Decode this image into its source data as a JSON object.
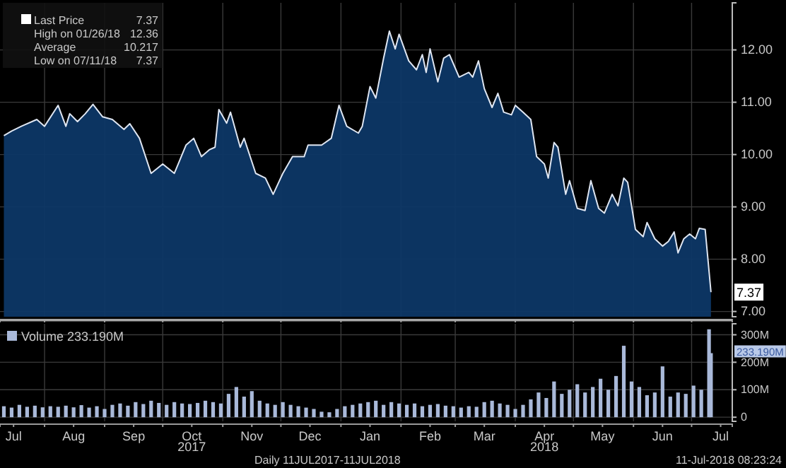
{
  "chart_data": [
    {
      "type": "area",
      "color": "#0d3766",
      "grid": true,
      "tick_labels": "y",
      "xlim": [
        "2017-07-09",
        "2018-07-22"
      ],
      "xticks": [
        {
          "value": "2017-08-01",
          "label": null
        },
        {
          "value": "2017-09-01",
          "label": null
        },
        {
          "value": "2017-10-01",
          "label": null
        },
        {
          "value": "2017-11-01",
          "label": null
        },
        {
          "value": "2017-12-01",
          "label": null
        },
        {
          "value": "2018-01-01",
          "label": null
        },
        {
          "value": "2018-02-01",
          "label": null
        },
        {
          "value": "2018-03-01",
          "label": null
        },
        {
          "value": "2018-04-01",
          "label": null
        },
        {
          "value": "2018-05-01",
          "label": null
        },
        {
          "value": "2018-06-01",
          "label": null
        },
        {
          "value": "2018-07-01",
          "label": null
        }
      ],
      "ylim": [
        6.9,
        12.9
      ],
      "yticks": [
        {
          "value": 7,
          "label": "7.00"
        },
        {
          "value": 8,
          "label": "8.00"
        },
        {
          "value": 9,
          "label": "9.00"
        },
        {
          "value": 10,
          "label": "10.00"
        },
        {
          "value": 11,
          "label": "11.00"
        },
        {
          "value": 12,
          "label": "12.00"
        }
      ],
      "x": [
        "2017-07-11",
        "2017-07-15",
        "2017-07-20",
        "2017-07-28",
        "2017-08-01",
        "2017-08-08",
        "2017-08-12",
        "2017-08-14",
        "2017-08-18",
        "2017-08-22",
        "2017-08-26",
        "2017-08-31",
        "2017-09-05",
        "2017-09-11",
        "2017-09-14",
        "2017-09-19",
        "2017-09-25",
        "2017-10-01",
        "2017-10-07",
        "2017-10-13",
        "2017-10-17",
        "2017-10-21",
        "2017-10-25",
        "2017-10-28",
        "2017-10-30",
        "2017-11-03",
        "2017-11-05",
        "2017-11-10",
        "2017-11-12",
        "2017-11-18",
        "2017-11-23",
        "2017-11-27",
        "2017-12-02",
        "2017-12-07",
        "2017-12-13",
        "2017-12-15",
        "2017-12-22",
        "2017-12-27",
        "2017-12-31",
        "2018-01-04",
        "2018-01-10",
        "2018-01-12",
        "2018-01-16",
        "2018-01-19",
        "2018-01-23",
        "2018-01-26",
        "2018-01-29",
        "2018-01-31",
        "2018-02-05",
        "2018-02-09",
        "2018-02-12",
        "2018-02-14",
        "2018-02-16",
        "2018-02-20",
        "2018-02-23",
        "2018-02-26",
        "2018-03-03",
        "2018-03-08",
        "2018-03-10",
        "2018-03-13",
        "2018-03-16",
        "2018-03-20",
        "2018-03-23",
        "2018-03-26",
        "2018-03-30",
        "2018-04-01",
        "2018-04-05",
        "2018-04-09",
        "2018-04-12",
        "2018-04-16",
        "2018-04-18",
        "2018-04-21",
        "2018-04-23",
        "2018-04-27",
        "2018-04-29",
        "2018-05-03",
        "2018-05-07",
        "2018-05-10",
        "2018-05-14",
        "2018-05-17",
        "2018-05-21",
        "2018-05-24",
        "2018-05-27",
        "2018-05-29",
        "2018-06-02",
        "2018-06-06",
        "2018-06-08",
        "2018-06-12",
        "2018-06-16",
        "2018-06-19",
        "2018-06-22",
        "2018-06-24",
        "2018-06-27",
        "2018-06-30",
        "2018-07-03",
        "2018-07-05",
        "2018-07-08",
        "2018-07-11"
      ],
      "values": [
        10.36,
        10.45,
        10.54,
        10.67,
        10.54,
        10.94,
        10.54,
        10.78,
        10.63,
        10.78,
        10.96,
        10.72,
        10.67,
        10.48,
        10.59,
        10.31,
        9.64,
        9.82,
        9.64,
        10.18,
        10.31,
        9.96,
        10.09,
        10.14,
        10.86,
        10.6,
        10.81,
        10.14,
        10.31,
        9.64,
        9.55,
        9.24,
        9.64,
        9.96,
        9.96,
        10.18,
        10.18,
        10.31,
        10.94,
        10.54,
        10.41,
        10.54,
        11.3,
        11.08,
        11.84,
        12.36,
        12.02,
        12.3,
        11.79,
        11.62,
        11.91,
        11.57,
        12.02,
        11.39,
        11.84,
        11.91,
        11.48,
        11.57,
        11.48,
        11.79,
        11.26,
        10.9,
        11.17,
        10.81,
        10.76,
        10.94,
        10.81,
        10.67,
        9.96,
        9.82,
        9.55,
        10.23,
        10.14,
        9.24,
        9.5,
        8.97,
        8.93,
        9.5,
        8.97,
        8.88,
        9.24,
        9.02,
        9.55,
        9.47,
        8.57,
        8.43,
        8.7,
        8.39,
        8.25,
        8.34,
        8.52,
        8.12,
        8.39,
        8.48,
        8.39,
        8.59,
        8.57,
        7.37
      ],
      "annotations": [
        "Last Price",
        "7.37",
        "High on 01/26/18",
        "12.36",
        "Average",
        "10.217",
        "Low on 07/11/18",
        "7.37",
        {
          "text": "7.37",
          "x": "2018-07-11",
          "y": 7.37
        }
      ]
    },
    {
      "type": "bar",
      "grid": true,
      "legend": "top left",
      "xlim": [
        "2017-07-09",
        "2018-07-22"
      ],
      "xticks": [
        {
          "value": "2017-07-16",
          "label": "Jul"
        },
        {
          "value": "2017-08-01",
          "label": null
        },
        {
          "value": "2017-08-16",
          "label": "Aug"
        },
        {
          "value": "2017-09-01",
          "label": null
        },
        {
          "value": "2017-09-16",
          "label": "Sep"
        },
        {
          "value": "2017-10-01",
          "label": null
        },
        {
          "value": "2017-10-16",
          "label": "Oct"
        },
        {
          "value": "2017-11-01",
          "label": null
        },
        {
          "value": "2017-11-16",
          "label": "Nov"
        },
        {
          "value": "2017-12-01",
          "label": null
        },
        {
          "value": "2017-12-16",
          "label": "Dec"
        },
        {
          "value": "2018-01-01",
          "label": null
        },
        {
          "value": "2018-01-16",
          "label": "Jan"
        },
        {
          "value": "2018-02-01",
          "label": null
        },
        {
          "value": "2018-02-16",
          "label": "Feb"
        },
        {
          "value": "2018-03-01",
          "label": null
        },
        {
          "value": "2018-03-16",
          "label": "Mar"
        },
        {
          "value": "2018-04-01",
          "label": null
        },
        {
          "value": "2018-04-16",
          "label": "Apr"
        },
        {
          "value": "2018-05-01",
          "label": null
        },
        {
          "value": "2018-05-16",
          "label": "May"
        },
        {
          "value": "2018-06-01",
          "label": null
        },
        {
          "value": "2018-06-16",
          "label": "Jun"
        },
        {
          "value": "2018-07-01",
          "label": null
        },
        {
          "value": "2018-07-16",
          "label": "Jul"
        }
      ],
      "ylim": [
        -15,
        340
      ],
      "yticks": [
        0,
        {
          "value": 100,
          "label": "100M"
        },
        {
          "value": 200,
          "label": "200M"
        },
        {
          "value": 300,
          "label": "300M"
        }
      ],
      "x": [
        "2017-07-11",
        "2017-07-15",
        "2017-07-19",
        "2017-07-23",
        "2017-07-27",
        "2017-07-31",
        "2017-08-04",
        "2017-08-08",
        "2017-08-12",
        "2017-08-16",
        "2017-08-20",
        "2017-08-24",
        "2017-08-28",
        "2017-09-01",
        "2017-09-05",
        "2017-09-09",
        "2017-09-13",
        "2017-09-17",
        "2017-09-21",
        "2017-09-25",
        "2017-09-29",
        "2017-10-03",
        "2017-10-07",
        "2017-10-11",
        "2017-10-15",
        "2017-10-19",
        "2017-10-23",
        "2017-10-27",
        "2017-10-31",
        "2017-11-04",
        "2017-11-08",
        "2017-11-12",
        "2017-11-16",
        "2017-11-20",
        "2017-11-24",
        "2017-11-28",
        "2017-12-02",
        "2017-12-06",
        "2017-12-10",
        "2017-12-14",
        "2017-12-18",
        "2017-12-22",
        "2017-12-26",
        "2017-12-30",
        "2018-01-03",
        "2018-01-07",
        "2018-01-11",
        "2018-01-15",
        "2018-01-19",
        "2018-01-23",
        "2018-01-27",
        "2018-01-31",
        "2018-02-04",
        "2018-02-08",
        "2018-02-12",
        "2018-02-16",
        "2018-02-20",
        "2018-02-24",
        "2018-02-28",
        "2018-03-04",
        "2018-03-08",
        "2018-03-12",
        "2018-03-16",
        "2018-03-20",
        "2018-03-24",
        "2018-03-28",
        "2018-04-01",
        "2018-04-05",
        "2018-04-09",
        "2018-04-13",
        "2018-04-17",
        "2018-04-21",
        "2018-04-25",
        "2018-04-29",
        "2018-05-03",
        "2018-05-07",
        "2018-05-11",
        "2018-05-15",
        "2018-05-19",
        "2018-05-23",
        "2018-05-27",
        "2018-05-31",
        "2018-06-04",
        "2018-06-08",
        "2018-06-12",
        "2018-06-16",
        "2018-06-20",
        "2018-06-24",
        "2018-06-28",
        "2018-07-02",
        "2018-07-06",
        "2018-07-10",
        "2018-07-11"
      ],
      "series": [
        {
          "name": "Volume 233.190M",
          "color": "#a9b9d9",
          "values": [
            40,
            35,
            45,
            38,
            42,
            36,
            40,
            38,
            42,
            36,
            44,
            35,
            40,
            30,
            45,
            50,
            42,
            55,
            48,
            60,
            52,
            45,
            55,
            50,
            48,
            52,
            60,
            55,
            50,
            85,
            110,
            75,
            95,
            60,
            50,
            45,
            55,
            45,
            40,
            35,
            30,
            20,
            18,
            30,
            40,
            45,
            50,
            55,
            60,
            45,
            55,
            50,
            45,
            50,
            40,
            45,
            48,
            42,
            40,
            35,
            40,
            38,
            55,
            60,
            50,
            45,
            30,
            45,
            65,
            90,
            70,
            130,
            85,
            100,
            120,
            90,
            110,
            140,
            100,
            150,
            260,
            130,
            110,
            80,
            90,
            185,
            75,
            90,
            85,
            115,
            100,
            320,
            233.19
          ]
        }
      ],
      "annotations": [
        {
          "text": "233.190M",
          "x": "2018-07-11",
          "y": 233.19
        },
        "2017",
        "2018",
        "Daily 11JUL2017-11JUL2018",
        "11-Jul-2018 08:23:24"
      ]
    }
  ]
}
